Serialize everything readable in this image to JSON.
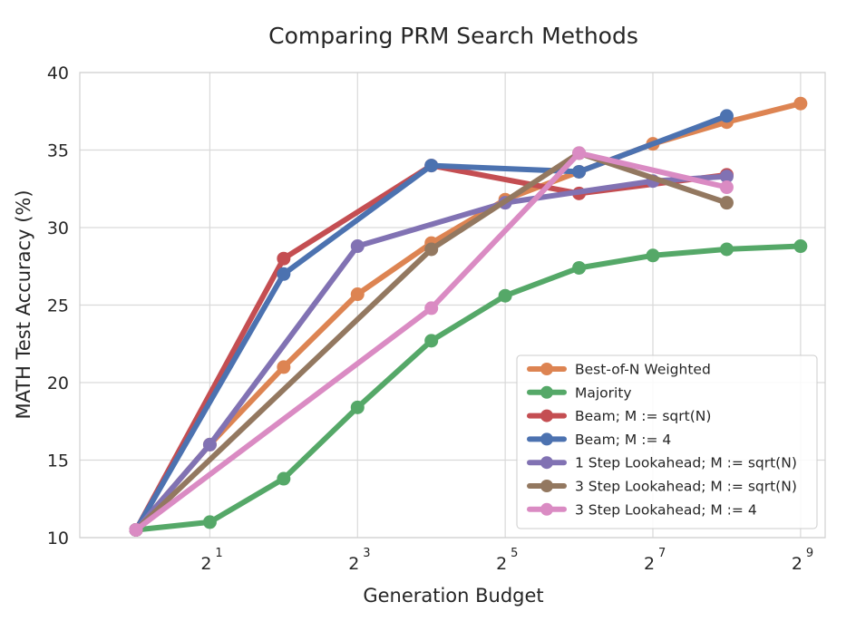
{
  "chart_data": {
    "type": "line",
    "title": "Comparing PRM Search Methods",
    "xlabel": "Generation Budget",
    "ylabel": "MATH Test Accuracy (%)",
    "x_scale": "log2",
    "xlim": [
      0.59,
      645
    ],
    "ylim": [
      10,
      40
    ],
    "x_ticks": [
      {
        "base": "2",
        "exp": "1",
        "value": 2
      },
      {
        "base": "2",
        "exp": "3",
        "value": 8
      },
      {
        "base": "2",
        "exp": "5",
        "value": 32
      },
      {
        "base": "2",
        "exp": "7",
        "value": 128
      },
      {
        "base": "2",
        "exp": "9",
        "value": 512
      }
    ],
    "y_ticks": [
      "10",
      "15",
      "20",
      "25",
      "30",
      "35",
      "40"
    ],
    "grid": true,
    "legend_position": "lower-right",
    "series": [
      {
        "name": "Best-of-N Weighted",
        "color": "#dd8452",
        "points": [
          [
            1,
            10.5
          ],
          [
            2,
            16
          ],
          [
            4,
            21
          ],
          [
            8,
            25.7
          ],
          [
            16,
            29
          ],
          [
            32,
            31.8
          ],
          [
            64,
            33.6
          ],
          [
            128,
            35.4
          ],
          [
            256,
            36.8
          ],
          [
            512,
            38
          ]
        ]
      },
      {
        "name": "Majority",
        "color": "#55a868",
        "points": [
          [
            1,
            10.5
          ],
          [
            2,
            11
          ],
          [
            4,
            13.8
          ],
          [
            8,
            18.4
          ],
          [
            16,
            22.7
          ],
          [
            32,
            25.6
          ],
          [
            64,
            27.4
          ],
          [
            128,
            28.2
          ],
          [
            256,
            28.6
          ],
          [
            512,
            28.8
          ]
        ]
      },
      {
        "name": "Beam; M := sqrt(N)",
        "color": "#c44e52",
        "points": [
          [
            1,
            10.5
          ],
          [
            4,
            28
          ],
          [
            16,
            34
          ],
          [
            64,
            32.2
          ],
          [
            256,
            33.4
          ]
        ]
      },
      {
        "name": "Beam; M := 4",
        "color": "#4c72b0",
        "points": [
          [
            1,
            10.5
          ],
          [
            4,
            27
          ],
          [
            16,
            34
          ],
          [
            64,
            33.6
          ],
          [
            256,
            37.2
          ]
        ]
      },
      {
        "name": "1 Step Lookahead; M := sqrt(N)",
        "color": "#8172b3",
        "points": [
          [
            1,
            10.5
          ],
          [
            2,
            16
          ],
          [
            8,
            28.8
          ],
          [
            32,
            31.6
          ],
          [
            128,
            33
          ],
          [
            256,
            33.3
          ]
        ]
      },
      {
        "name": "3 Step Lookahead; M := sqrt(N)",
        "color": "#937860",
        "points": [
          [
            1,
            10.5
          ],
          [
            16,
            28.6
          ],
          [
            64,
            34.8
          ],
          [
            256,
            31.6
          ]
        ]
      },
      {
        "name": "3 Step Lookahead; M := 4",
        "color": "#da8bc3",
        "points": [
          [
            1,
            10.5
          ],
          [
            16,
            24.8
          ],
          [
            64,
            34.8
          ],
          [
            256,
            32.6
          ]
        ]
      }
    ]
  }
}
